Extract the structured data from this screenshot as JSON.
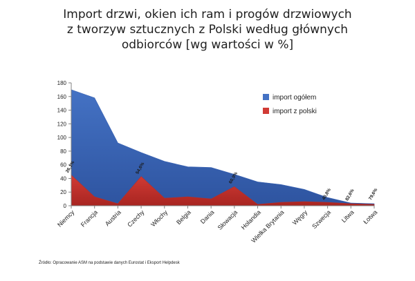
{
  "title_lines": [
    "Import drzwi, okien ich ram i progów drzwiowych",
    "z tworzyw sztucznych z Polski według głównych",
    "odbiorców [wg wartości w %]"
  ],
  "source": "Źródło: Opracowanie ASM na podstawie danych Eurostat i Eksport Helpdesk",
  "colors": {
    "total": "#4472c4",
    "total_dark": "#2e54a0",
    "poland": "#d13b35",
    "axis": "#808080"
  },
  "chart_data": {
    "type": "area",
    "title": "Import drzwi, okien ich ram i progów drzwiowych z tworzyw sztucznych z Polski według głównych odbiorców [wg wartości w %]",
    "categories": [
      "Niemcy",
      "Francja",
      "Austria",
      "Czechy",
      "Włochy",
      "Belgia",
      "Dania",
      "Słowacja",
      "Holandia",
      "Wielka Brytania",
      "Węgry",
      "Szwecja",
      "Litwa",
      "Łotwa"
    ],
    "series": [
      {
        "name": "import ogółem",
        "values": [
          170,
          158,
          92,
          78,
          65,
          57,
          56,
          46,
          35,
          31,
          24,
          12,
          4,
          3
        ]
      },
      {
        "name": "import z polski",
        "values": [
          45,
          13,
          3,
          43,
          11,
          13,
          10,
          28,
          2,
          5,
          6,
          5,
          3,
          2
        ]
      }
    ],
    "point_labels": [
      {
        "category": "Niemcy",
        "text": "26,1%",
        "y": 56
      },
      {
        "category": "Czechy",
        "text": "54,6%",
        "y": 54
      },
      {
        "category": "Słowacja",
        "text": "60,9%",
        "y": 40
      },
      {
        "category": "Szwecja",
        "text": "40,8%",
        "y": 16
      },
      {
        "category": "Litwa",
        "text": "82,6%",
        "y": 15
      },
      {
        "category": "Łotwa",
        "text": "79,6%",
        "y": 16
      }
    ],
    "ylim": [
      0,
      180
    ],
    "yticks": [
      0,
      20,
      40,
      60,
      80,
      100,
      120,
      140,
      160,
      180
    ],
    "grid": false,
    "legend": "top-right"
  }
}
